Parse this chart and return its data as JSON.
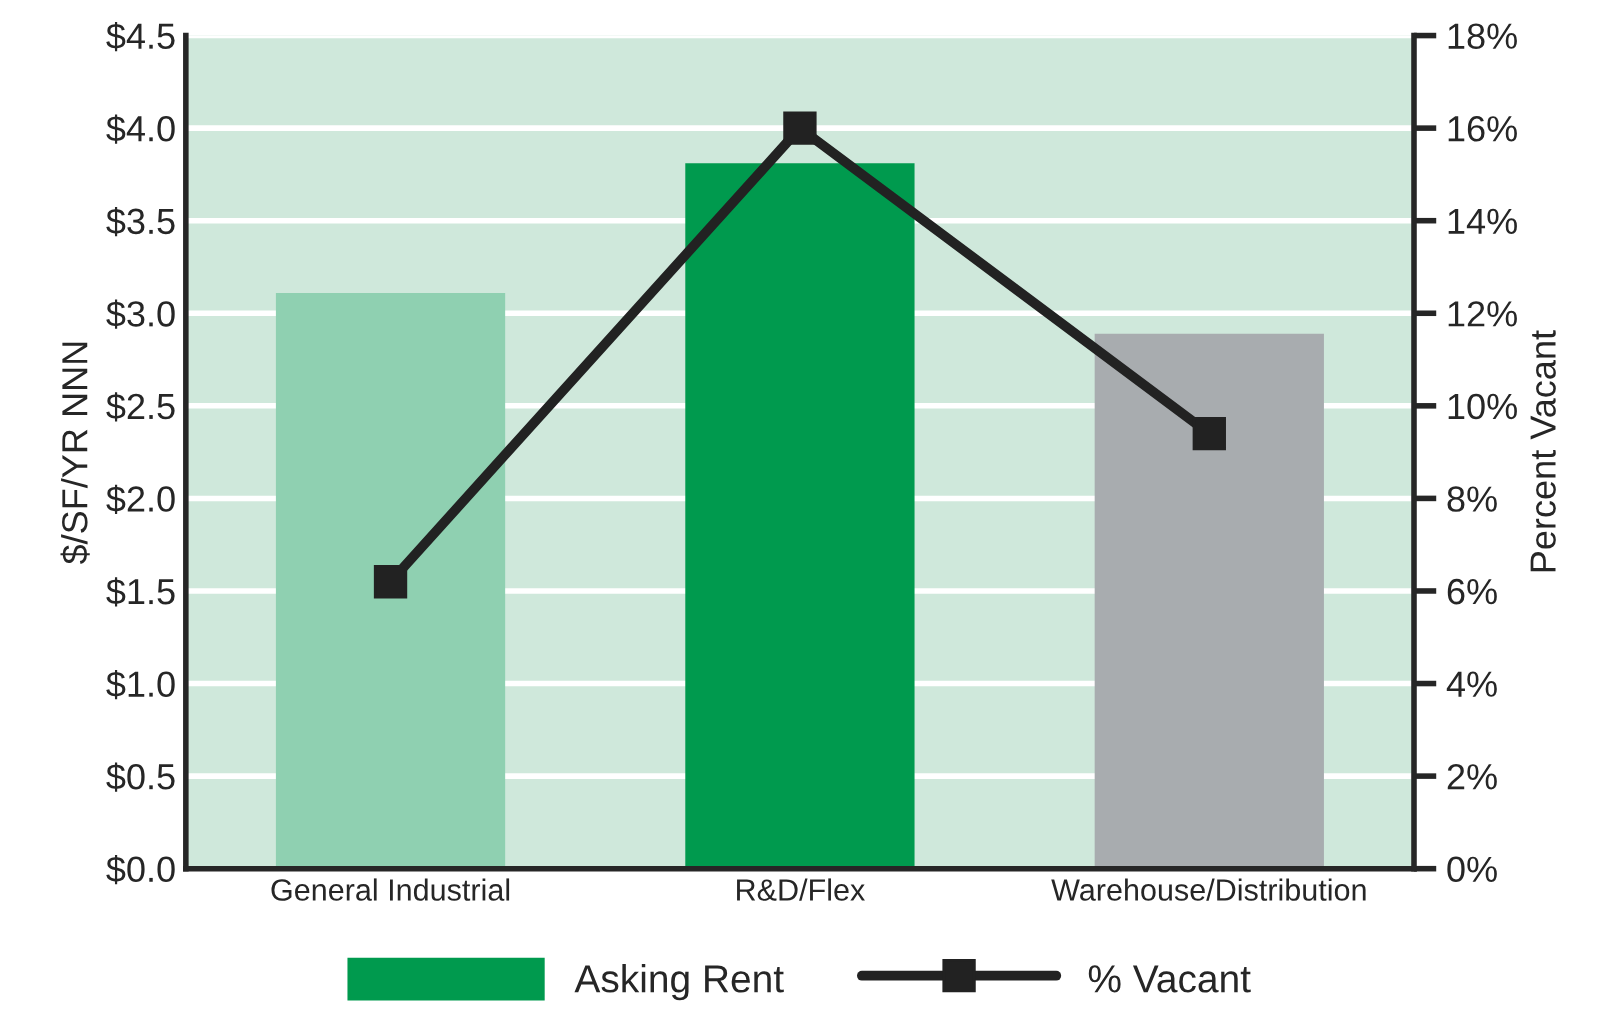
{
  "chart_data": {
    "type": "bar",
    "categories": [
      "General Industrial",
      "R&D/Flex",
      "Warehouse/Distribution"
    ],
    "ylabel": "$/SF/YR NNN",
    "y2label": "Percent Vacant",
    "series": [
      {
        "name": "Asking Rent",
        "color": "#009a4e",
        "colors": [
          "#8fd0b1",
          "#009a4e",
          "#a8acaf"
        ],
        "values": [
          3.11,
          3.81,
          2.89
        ]
      },
      {
        "name": "% Vacant",
        "type": "line",
        "axis": "y2",
        "color": "#222222",
        "values": [
          6.2,
          16.0,
          9.4
        ]
      }
    ],
    "ylim": [
      0,
      4.5
    ],
    "yticks": [
      {
        "value": 0,
        "label": "$0.0"
      },
      {
        "value": 0.5,
        "label": "$0.5"
      },
      {
        "value": 1,
        "label": "$1.0"
      },
      {
        "value": 1.5,
        "label": "$1.5"
      },
      {
        "value": 2,
        "label": "$2.0"
      },
      {
        "value": 2.5,
        "label": "$2.5"
      },
      {
        "value": 3,
        "label": "$3.0"
      },
      {
        "value": 3.5,
        "label": "$3.5"
      },
      {
        "value": 4,
        "label": "$4.0"
      },
      {
        "value": 4.5,
        "label": "$4.5"
      }
    ],
    "y2lim": [
      0,
      18
    ],
    "y2ticks": [
      {
        "value": 0,
        "label": "0%"
      },
      {
        "value": 2,
        "label": "2%"
      },
      {
        "value": 4,
        "label": "4%"
      },
      {
        "value": 6,
        "label": "6%"
      },
      {
        "value": 8,
        "label": "8%"
      },
      {
        "value": 10,
        "label": "10%"
      },
      {
        "value": 12,
        "label": "12%"
      },
      {
        "value": 14,
        "label": "14%"
      },
      {
        "value": 16,
        "label": "16%"
      },
      {
        "value": 18,
        "label": "18%"
      }
    ],
    "grid": "y",
    "legend": "bottom",
    "marker": "square",
    "line_style": "solid"
  }
}
